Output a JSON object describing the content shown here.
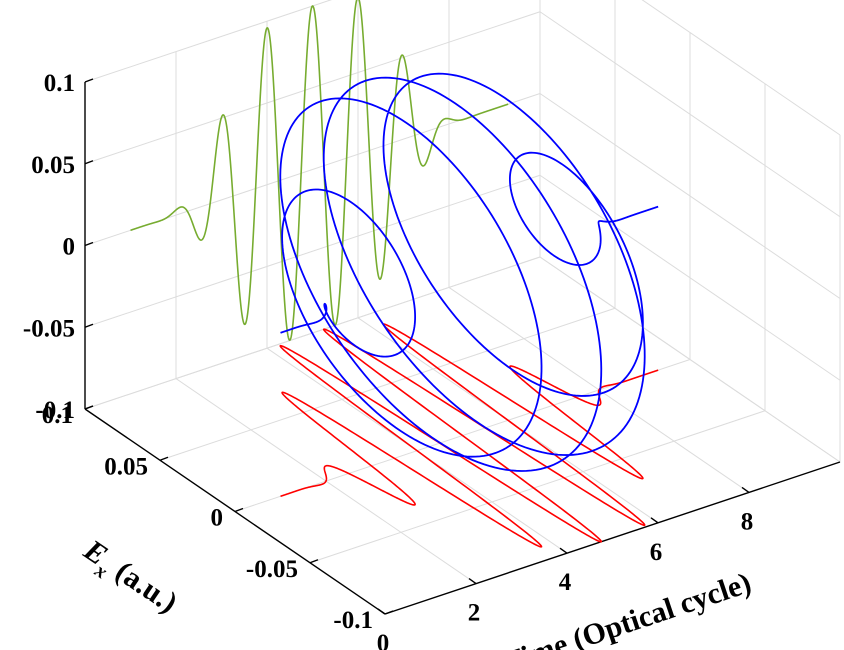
{
  "chart_data": {
    "type": "line3d",
    "x": {
      "label": "Time (Optical cycle)",
      "range": [
        0,
        10
      ],
      "ticks": [
        0,
        2,
        4,
        6,
        8
      ],
      "tick_labels": [
        "0",
        "2",
        "4",
        "6",
        "8"
      ]
    },
    "y": {
      "label": "E_x (a.u.)",
      "label_main": "E",
      "label_sub": "x",
      "label_units": "(a.u.)",
      "range": [
        -0.1,
        0.1
      ],
      "ticks": [
        -0.1,
        -0.05,
        0,
        0.05,
        0.1
      ],
      "tick_labels": [
        "-0.1",
        "-0.05",
        "0",
        "0.05",
        "0.1"
      ]
    },
    "z": {
      "label": "",
      "range": [
        -0.1,
        0.1
      ],
      "ticks": [
        -0.1,
        -0.05,
        0,
        0.05,
        0.1
      ],
      "tick_labels": [
        "-0.1",
        "-0.05",
        "0",
        "0.05",
        "0.1"
      ]
    },
    "grid": true,
    "pulse": {
      "amplitude": 0.1,
      "center": 5,
      "width": 2.2,
      "cycles_per_unit": 1,
      "t_range": [
        1,
        9.3
      ]
    },
    "series": [
      {
        "component": "3d",
        "color": "#0000ff"
      },
      {
        "component": "x-projection",
        "color": "#ff0000"
      },
      {
        "component": "z-projection",
        "color": "#77ac30"
      }
    ]
  }
}
